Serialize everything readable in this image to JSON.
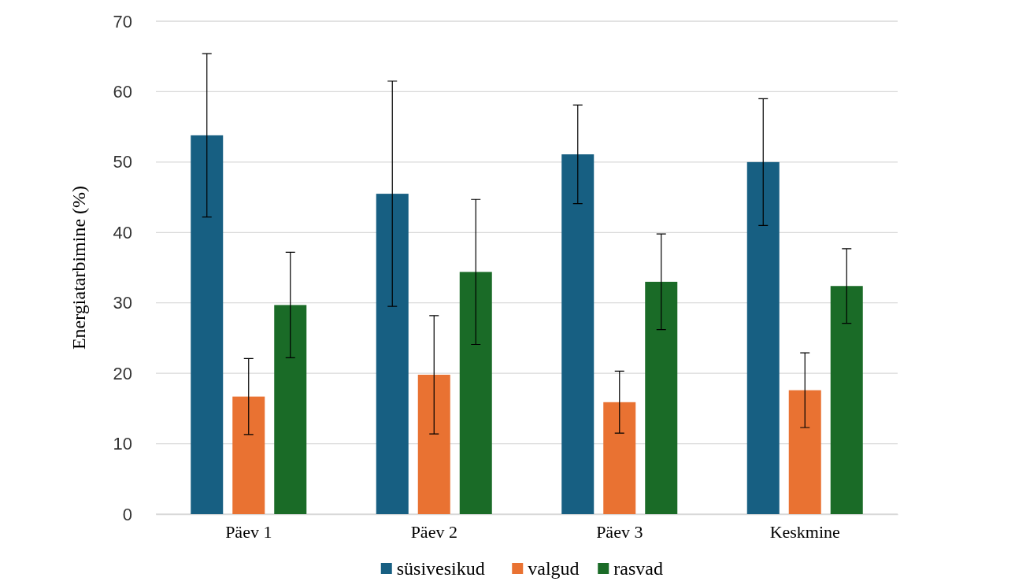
{
  "chart_data": {
    "type": "bar",
    "ylabel": "Energiatarbimine (%)",
    "categories": [
      "Päev 1",
      "Päev 2",
      "Päev 3",
      "Keskmine"
    ],
    "series": [
      {
        "name": "süsivesikud",
        "color": "#175f82",
        "values": [
          53.8,
          45.5,
          51.1,
          50.0
        ],
        "errors": [
          11.6,
          16,
          7,
          9
        ]
      },
      {
        "name": "valgud",
        "color": "#e97232",
        "values": [
          16.7,
          19.8,
          15.9,
          17.6
        ],
        "errors": [
          5.4,
          8.4,
          4.4,
          5.3
        ]
      },
      {
        "name": "rasvad",
        "color": "#1a6b27",
        "values": [
          29.7,
          34.4,
          33.0,
          32.4
        ],
        "errors": [
          7.5,
          10.3,
          6.8,
          5.3
        ]
      }
    ],
    "ylim": [
      0,
      70
    ],
    "yticks": [
      0,
      10,
      20,
      30,
      40,
      50,
      60,
      70
    ],
    "grid": "y",
    "legend": "bottom"
  }
}
